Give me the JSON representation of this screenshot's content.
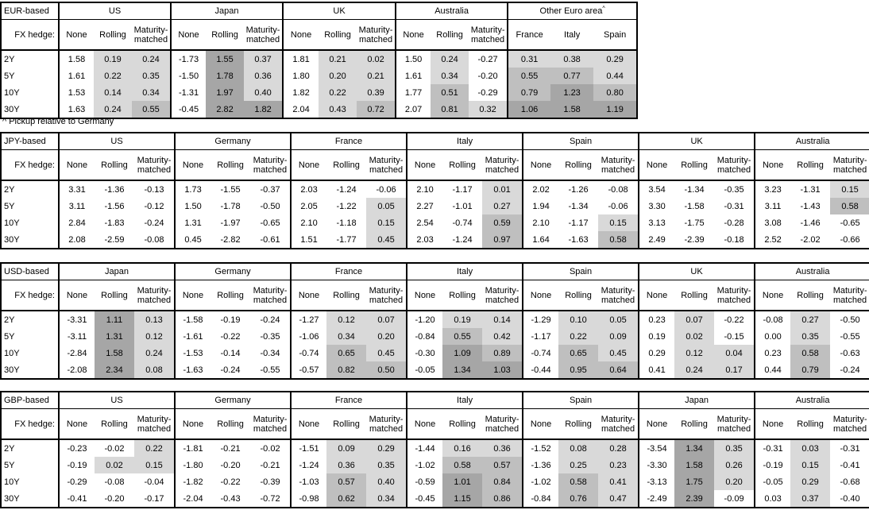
{
  "footnote": "^ Pickup relative to Germany",
  "colors": {
    "background": "#ffffff",
    "border": "#000000",
    "text": "#000000",
    "shade_light": "#d9d9d9",
    "shade_medium": "#bfbfbf",
    "shade_dark": "#a6a6a6"
  },
  "hedge_row_label": "FX hedge:",
  "hedge_columns": [
    "None",
    "Rolling",
    "Maturity-matched"
  ],
  "tenors": [
    "2Y",
    "5Y",
    "10Y",
    "30Y"
  ],
  "tables": [
    {
      "id": "eur",
      "title": "EUR-based",
      "groups": [
        {
          "name": "US",
          "rows": [
            [
              "1.58",
              "0.19",
              "0.24"
            ],
            [
              "1.61",
              "0.22",
              "0.35"
            ],
            [
              "1.53",
              "0.14",
              "0.34"
            ],
            [
              "1.63",
              "0.24",
              "0.55"
            ]
          ]
        },
        {
          "name": "Japan",
          "rows": [
            [
              "-1.73",
              "1.55",
              "0.37"
            ],
            [
              "-1.50",
              "1.78",
              "0.36"
            ],
            [
              "-1.31",
              "1.97",
              "0.40"
            ],
            [
              "-0.45",
              "2.82",
              "1.82"
            ]
          ]
        },
        {
          "name": "UK",
          "rows": [
            [
              "1.81",
              "0.21",
              "0.02"
            ],
            [
              "1.80",
              "0.20",
              "0.21"
            ],
            [
              "1.82",
              "0.22",
              "0.39"
            ],
            [
              "2.04",
              "0.43",
              "0.72"
            ]
          ]
        },
        {
          "name": "Australia",
          "rows": [
            [
              "1.50",
              "0.24",
              "-0.27"
            ],
            [
              "1.61",
              "0.34",
              "-0.20"
            ],
            [
              "1.77",
              "0.51",
              "-0.29"
            ],
            [
              "2.07",
              "0.81",
              "0.32"
            ]
          ]
        },
        {
          "name": "Other Euro area",
          "superscript": "^",
          "columns": [
            "France",
            "Italy",
            "Spain"
          ],
          "rows": [
            [
              "0.31",
              "0.38",
              "0.29"
            ],
            [
              "0.55",
              "0.77",
              "0.44"
            ],
            [
              "0.79",
              "1.23",
              "0.80"
            ],
            [
              "1.06",
              "1.58",
              "1.19"
            ]
          ]
        }
      ]
    },
    {
      "id": "jpy",
      "title": "JPY-based",
      "groups": [
        {
          "name": "US",
          "rows": [
            [
              "3.31",
              "-1.36",
              "-0.13"
            ],
            [
              "3.11",
              "-1.56",
              "-0.12"
            ],
            [
              "2.84",
              "-1.83",
              "-0.24"
            ],
            [
              "2.08",
              "-2.59",
              "-0.08"
            ]
          ]
        },
        {
          "name": "Germany",
          "rows": [
            [
              "1.73",
              "-1.55",
              "-0.37"
            ],
            [
              "1.50",
              "-1.78",
              "-0.50"
            ],
            [
              "1.31",
              "-1.97",
              "-0.65"
            ],
            [
              "0.45",
              "-2.82",
              "-0.61"
            ]
          ]
        },
        {
          "name": "France",
          "rows": [
            [
              "2.03",
              "-1.24",
              "-0.06"
            ],
            [
              "2.05",
              "-1.22",
              "0.05"
            ],
            [
              "2.10",
              "-1.18",
              "0.15"
            ],
            [
              "1.51",
              "-1.77",
              "0.45"
            ]
          ]
        },
        {
          "name": "Italy",
          "rows": [
            [
              "2.10",
              "-1.17",
              "0.01"
            ],
            [
              "2.27",
              "-1.01",
              "0.27"
            ],
            [
              "2.54",
              "-0.74",
              "0.59"
            ],
            [
              "2.03",
              "-1.24",
              "0.97"
            ]
          ]
        },
        {
          "name": "Spain",
          "rows": [
            [
              "2.02",
              "-1.26",
              "-0.08"
            ],
            [
              "1.94",
              "-1.34",
              "-0.06"
            ],
            [
              "2.10",
              "-1.17",
              "0.15"
            ],
            [
              "1.64",
              "-1.63",
              "0.58"
            ]
          ]
        },
        {
          "name": "UK",
          "rows": [
            [
              "3.54",
              "-1.34",
              "-0.35"
            ],
            [
              "3.30",
              "-1.58",
              "-0.31"
            ],
            [
              "3.13",
              "-1.75",
              "-0.28"
            ],
            [
              "2.49",
              "-2.39",
              "-0.18"
            ]
          ]
        },
        {
          "name": "Australia",
          "rows": [
            [
              "3.23",
              "-1.31",
              "0.15"
            ],
            [
              "3.11",
              "-1.43",
              "0.58"
            ],
            [
              "3.08",
              "-1.46",
              "-0.65"
            ],
            [
              "2.52",
              "-2.02",
              "-0.66"
            ]
          ]
        }
      ]
    },
    {
      "id": "usd",
      "title": "USD-based",
      "groups": [
        {
          "name": "Japan",
          "rows": [
            [
              "-3.31",
              "1.11",
              "0.13"
            ],
            [
              "-3.11",
              "1.31",
              "0.12"
            ],
            [
              "-2.84",
              "1.58",
              "0.24"
            ],
            [
              "-2.08",
              "2.34",
              "0.08"
            ]
          ]
        },
        {
          "name": "Germany",
          "rows": [
            [
              "-1.58",
              "-0.19",
              "-0.24"
            ],
            [
              "-1.61",
              "-0.22",
              "-0.35"
            ],
            [
              "-1.53",
              "-0.14",
              "-0.34"
            ],
            [
              "-1.63",
              "-0.24",
              "-0.55"
            ]
          ]
        },
        {
          "name": "France",
          "rows": [
            [
              "-1.27",
              "0.12",
              "0.07"
            ],
            [
              "-1.06",
              "0.34",
              "0.20"
            ],
            [
              "-0.74",
              "0.65",
              "0.45"
            ],
            [
              "-0.57",
              "0.82",
              "0.50"
            ]
          ]
        },
        {
          "name": "Italy",
          "rows": [
            [
              "-1.20",
              "0.19",
              "0.14"
            ],
            [
              "-0.84",
              "0.55",
              "0.42"
            ],
            [
              "-0.30",
              "1.09",
              "0.89"
            ],
            [
              "-0.05",
              "1.34",
              "1.03"
            ]
          ]
        },
        {
          "name": "Spain",
          "rows": [
            [
              "-1.29",
              "0.10",
              "0.05"
            ],
            [
              "-1.17",
              "0.22",
              "0.09"
            ],
            [
              "-0.74",
              "0.65",
              "0.45"
            ],
            [
              "-0.44",
              "0.95",
              "0.64"
            ]
          ]
        },
        {
          "name": "UK",
          "rows": [
            [
              "0.23",
              "0.07",
              "-0.22"
            ],
            [
              "0.19",
              "0.02",
              "-0.15"
            ],
            [
              "0.29",
              "0.12",
              "0.04"
            ],
            [
              "0.41",
              "0.24",
              "0.17"
            ]
          ]
        },
        {
          "name": "Australia",
          "rows": [
            [
              "-0.08",
              "0.27",
              "-0.50"
            ],
            [
              "0.00",
              "0.35",
              "-0.55"
            ],
            [
              "0.23",
              "0.58",
              "-0.63"
            ],
            [
              "0.44",
              "0.79",
              "-0.24"
            ]
          ]
        }
      ]
    },
    {
      "id": "gbp",
      "title": "GBP-based",
      "groups": [
        {
          "name": "US",
          "rows": [
            [
              "-0.23",
              "-0.02",
              "0.22"
            ],
            [
              "-0.19",
              "0.02",
              "0.15"
            ],
            [
              "-0.29",
              "-0.08",
              "-0.04"
            ],
            [
              "-0.41",
              "-0.20",
              "-0.17"
            ]
          ]
        },
        {
          "name": "Germany",
          "rows": [
            [
              "-1.81",
              "-0.21",
              "-0.02"
            ],
            [
              "-1.80",
              "-0.20",
              "-0.21"
            ],
            [
              "-1.82",
              "-0.22",
              "-0.39"
            ],
            [
              "-2.04",
              "-0.43",
              "-0.72"
            ]
          ]
        },
        {
          "name": "France",
          "rows": [
            [
              "-1.51",
              "0.09",
              "0.29"
            ],
            [
              "-1.24",
              "0.36",
              "0.35"
            ],
            [
              "-1.03",
              "0.57",
              "0.40"
            ],
            [
              "-0.98",
              "0.62",
              "0.34"
            ]
          ]
        },
        {
          "name": "Italy",
          "rows": [
            [
              "-1.44",
              "0.16",
              "0.36"
            ],
            [
              "-1.02",
              "0.58",
              "0.57"
            ],
            [
              "-0.59",
              "1.01",
              "0.84"
            ],
            [
              "-0.45",
              "1.15",
              "0.86"
            ]
          ]
        },
        {
          "name": "Spain",
          "rows": [
            [
              "-1.52",
              "0.08",
              "0.28"
            ],
            [
              "-1.36",
              "0.25",
              "0.23"
            ],
            [
              "-1.02",
              "0.58",
              "0.41"
            ],
            [
              "-0.84",
              "0.76",
              "0.47"
            ]
          ]
        },
        {
          "name": "Japan",
          "rows": [
            [
              "-3.54",
              "1.34",
              "0.35"
            ],
            [
              "-3.30",
              "1.58",
              "0.26"
            ],
            [
              "-3.13",
              "1.75",
              "0.20"
            ],
            [
              "-2.49",
              "2.39",
              "-0.09"
            ]
          ]
        },
        {
          "name": "Australia",
          "rows": [
            [
              "-0.31",
              "0.03",
              "-0.31"
            ],
            [
              "-0.19",
              "0.15",
              "-0.41"
            ],
            [
              "-0.05",
              "0.29",
              "-0.68"
            ],
            [
              "0.03",
              "0.37",
              "-0.40"
            ]
          ]
        }
      ]
    }
  ]
}
